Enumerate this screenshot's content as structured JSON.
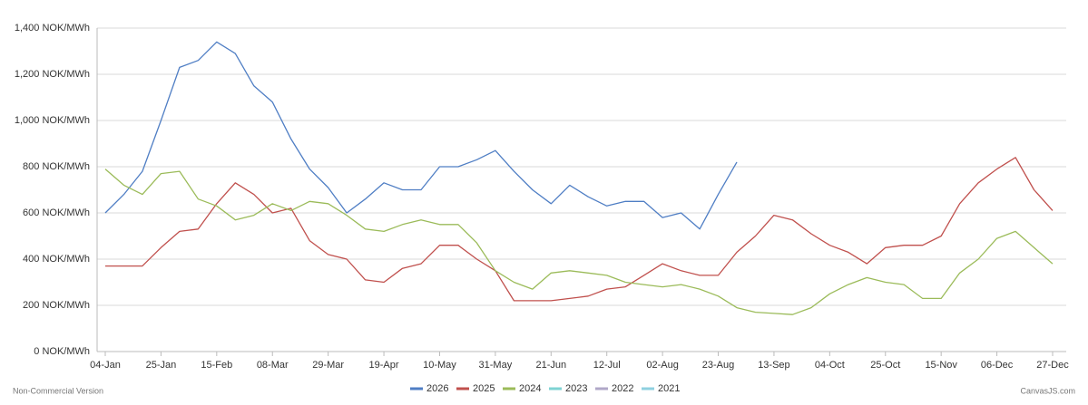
{
  "chart_data": {
    "type": "line",
    "categories": [
      "04-Jan",
      null,
      null,
      "25-Jan",
      null,
      null,
      "15-Feb",
      null,
      null,
      "08-Mar",
      null,
      null,
      "29-Mar",
      null,
      null,
      "19-Apr",
      null,
      null,
      "10-May",
      null,
      null,
      "31-May",
      null,
      null,
      "21-Jun",
      null,
      null,
      "12-Jul",
      null,
      null,
      "02-Aug",
      null,
      null,
      "23-Aug",
      null,
      null,
      "13-Sep",
      null,
      null,
      "04-Oct",
      null,
      null,
      "25-Oct",
      null,
      null,
      "15-Nov",
      null,
      null,
      "06-Dec",
      null,
      null,
      "27-Dec"
    ],
    "series": [
      {
        "name": "2026",
        "color": "#4f7ec4",
        "values": [
          600,
          680,
          780,
          1000,
          1230,
          1260,
          1340,
          1290,
          1150,
          1080,
          920,
          790,
          710,
          600,
          660,
          730,
          700,
          700,
          800,
          800,
          830,
          870,
          780,
          700,
          640,
          720,
          670,
          630,
          650,
          650,
          580,
          600,
          530,
          680,
          820,
          null,
          null,
          null,
          null,
          null,
          null,
          null,
          null,
          null,
          null,
          null,
          null,
          null,
          null,
          null,
          null,
          null
        ]
      },
      {
        "name": "2025",
        "color": "#c0504d",
        "values": [
          370,
          370,
          370,
          450,
          520,
          530,
          640,
          730,
          680,
          600,
          620,
          480,
          420,
          400,
          310,
          300,
          360,
          380,
          460,
          460,
          400,
          350,
          220,
          220,
          220,
          230,
          240,
          270,
          280,
          330,
          380,
          350,
          330,
          330,
          430,
          500,
          590,
          570,
          510,
          460,
          430,
          380,
          450,
          460,
          460,
          500,
          640,
          730,
          790,
          840,
          700,
          610
        ]
      },
      {
        "name": "2024",
        "color": "#9bbb59",
        "values": [
          790,
          720,
          680,
          770,
          780,
          660,
          630,
          570,
          590,
          640,
          610,
          650,
          640,
          590,
          530,
          520,
          550,
          570,
          550,
          550,
          470,
          350,
          300,
          270,
          340,
          350,
          340,
          330,
          300,
          290,
          280,
          290,
          270,
          240,
          190,
          170,
          165,
          160,
          190,
          250,
          290,
          320,
          300,
          290,
          230,
          230,
          340,
          400,
          490,
          520,
          450,
          380
        ]
      },
      {
        "name": "2023",
        "color": "#7fd3d3",
        "values": [
          null,
          null,
          null,
          null,
          null,
          null,
          null,
          null,
          null,
          null,
          null,
          null,
          null,
          null,
          null,
          null,
          null,
          null,
          null,
          null,
          null,
          null,
          null,
          null,
          null,
          null,
          null,
          null,
          null,
          null,
          null,
          null,
          null,
          null,
          null,
          null,
          null,
          null,
          null,
          null,
          null,
          null,
          null,
          null,
          null,
          null,
          null,
          null,
          null,
          null,
          null,
          null
        ]
      },
      {
        "name": "2022",
        "color": "#b0a8c8",
        "values": [
          null,
          null,
          null,
          null,
          null,
          null,
          null,
          null,
          null,
          null,
          null,
          null,
          null,
          null,
          null,
          null,
          null,
          null,
          null,
          null,
          null,
          null,
          null,
          null,
          null,
          null,
          null,
          null,
          null,
          null,
          null,
          null,
          null,
          null,
          null,
          null,
          null,
          null,
          null,
          null,
          null,
          null,
          null,
          null,
          null,
          null,
          null,
          null,
          null,
          null,
          null,
          null
        ]
      },
      {
        "name": "2021",
        "color": "#8fd0e0",
        "values": [
          null,
          null,
          null,
          null,
          null,
          null,
          null,
          null,
          null,
          null,
          null,
          null,
          null,
          null,
          null,
          null,
          null,
          null,
          null,
          null,
          null,
          null,
          null,
          null,
          null,
          null,
          null,
          null,
          null,
          null,
          null,
          null,
          null,
          null,
          null,
          null,
          null,
          null,
          null,
          null,
          null,
          null,
          null,
          null,
          null,
          null,
          null,
          null,
          null,
          null,
          null,
          null
        ]
      }
    ],
    "ylim": [
      0,
      1400
    ],
    "yticks": [
      {
        "value": 0,
        "label": "0 NOK/MWh"
      },
      {
        "value": 200,
        "label": "200 NOK/MWh"
      },
      {
        "value": 400,
        "label": "400 NOK/MWh"
      },
      {
        "value": 600,
        "label": "600 NOK/MWh"
      },
      {
        "value": 800,
        "label": "800 NOK/MWh"
      },
      {
        "value": 1000,
        "label": "1,000 NOK/MWh"
      },
      {
        "value": 1200,
        "label": "1,200 NOK/MWh"
      },
      {
        "value": 1400,
        "label": "1,400 NOK/MWh"
      }
    ],
    "grid": true,
    "legend": "bottom",
    "footer_left": "Non-Commercial Version",
    "footer_right": "CanvasJS.com"
  }
}
